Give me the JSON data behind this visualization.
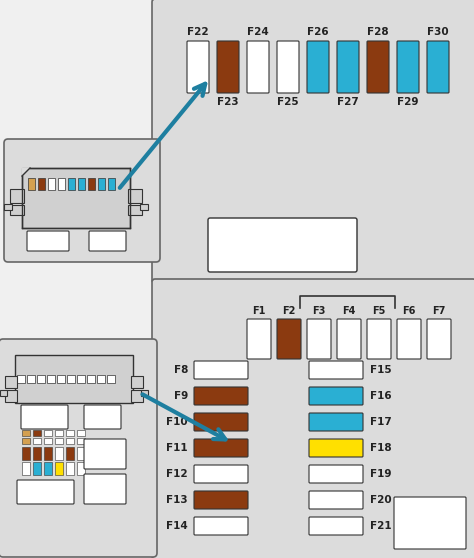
{
  "bg_top": "#dcdcdc",
  "bg_bot": "#dcdcdc",
  "bg_page": "#f0f0f0",
  "white": "#ffffff",
  "brown": "#8B3A10",
  "blue": "#2aafd3",
  "yellow": "#FFE000",
  "outline": "#666666",
  "outline_dark": "#333333",
  "top_fuses": [
    {
      "label_top": "F22",
      "color": "#ffffff",
      "label_bot": null
    },
    {
      "label_top": null,
      "color": "#8B3A10",
      "label_bot": "F23"
    },
    {
      "label_top": "F24",
      "color": "#ffffff",
      "label_bot": null
    },
    {
      "label_top": null,
      "color": "#ffffff",
      "label_bot": "F25"
    },
    {
      "label_top": "F26",
      "color": "#2aafd3",
      "label_bot": null
    },
    {
      "label_top": null,
      "color": "#2aafd3",
      "label_bot": "F27"
    },
    {
      "label_top": "F28",
      "color": "#8B3A10",
      "label_bot": null
    },
    {
      "label_top": null,
      "color": "#2aafd3",
      "label_bot": "F29"
    },
    {
      "label_top": "F30",
      "color": "#2aafd3",
      "label_bot": null
    }
  ],
  "bottom_top_row": [
    {
      "label": "F1",
      "color": "#ffffff"
    },
    {
      "label": "F2",
      "color": "#8B3A10"
    },
    {
      "label": "F3",
      "color": "#ffffff"
    },
    {
      "label": "F4",
      "color": "#ffffff"
    },
    {
      "label": "F5",
      "color": "#ffffff"
    },
    {
      "label": "F6",
      "color": "#ffffff"
    },
    {
      "label": "F7",
      "color": "#ffffff"
    }
  ],
  "left_col": [
    {
      "label": "F8",
      "color": "#ffffff"
    },
    {
      "label": "F9",
      "color": "#8B3A10"
    },
    {
      "label": "F10",
      "color": "#8B3A10"
    },
    {
      "label": "F11",
      "color": "#8B3A10"
    },
    {
      "label": "F12",
      "color": "#ffffff"
    },
    {
      "label": "F13",
      "color": "#8B3A10"
    },
    {
      "label": "F14",
      "color": "#ffffff"
    }
  ],
  "right_col": [
    {
      "label": "F15",
      "color": "#ffffff"
    },
    {
      "label": "F16",
      "color": "#2aafd3"
    },
    {
      "label": "F17",
      "color": "#2aafd3"
    },
    {
      "label": "F18",
      "color": "#FFE000"
    },
    {
      "label": "F19",
      "color": "#ffffff"
    },
    {
      "label": "F20",
      "color": "#ffffff"
    },
    {
      "label": "F21",
      "color": "#ffffff"
    }
  ],
  "mini1_fuse_colors": [
    "#d4a050",
    "#8B3A10",
    "#ffffff",
    "#ffffff",
    "#2aafd3",
    "#2aafd3",
    "#8B3A10",
    "#2aafd3",
    "#2aafd3"
  ],
  "mini2_row1_colors": [
    "#d4a050",
    "#8B3A10",
    "#ffffff",
    "#ffffff",
    "#ffffff",
    "#ffffff"
  ],
  "mini2_row2_colors": [
    "#d4a050",
    "#ffffff",
    "#ffffff",
    "#ffffff",
    "#ffffff",
    "#ffffff"
  ],
  "mini2_col1_colors": [
    "#8B3A10",
    "#8B3A10",
    "#8B3A10",
    "#ffffff",
    "#8B3A10",
    "#ffffff"
  ],
  "mini2_col2_colors": [
    "#ffffff",
    "#2aafd3",
    "#2aafd3",
    "#FFE000",
    "#ffffff",
    "#ffffff"
  ]
}
